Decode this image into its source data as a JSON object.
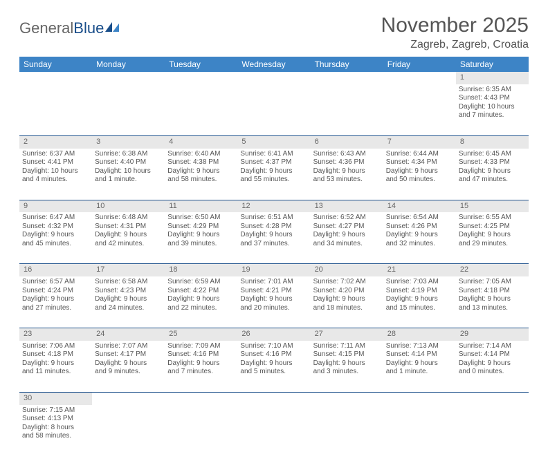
{
  "logo": {
    "part1": "General",
    "part2": "Blue"
  },
  "title": "November 2025",
  "location": "Zagreb, Zagreb, Croatia",
  "colors": {
    "header_bg": "#3d84c6",
    "header_text": "#ffffff",
    "daynum_bg": "#e8e8e8",
    "cell_border": "#1a4e8a",
    "text": "#555555"
  },
  "weekdays": [
    "Sunday",
    "Monday",
    "Tuesday",
    "Wednesday",
    "Thursday",
    "Friday",
    "Saturday"
  ],
  "weeks": [
    [
      null,
      null,
      null,
      null,
      null,
      null,
      {
        "n": "1",
        "sr": "Sunrise: 6:35 AM",
        "ss": "Sunset: 4:43 PM",
        "d1": "Daylight: 10 hours",
        "d2": "and 7 minutes."
      }
    ],
    [
      {
        "n": "2",
        "sr": "Sunrise: 6:37 AM",
        "ss": "Sunset: 4:41 PM",
        "d1": "Daylight: 10 hours",
        "d2": "and 4 minutes."
      },
      {
        "n": "3",
        "sr": "Sunrise: 6:38 AM",
        "ss": "Sunset: 4:40 PM",
        "d1": "Daylight: 10 hours",
        "d2": "and 1 minute."
      },
      {
        "n": "4",
        "sr": "Sunrise: 6:40 AM",
        "ss": "Sunset: 4:38 PM",
        "d1": "Daylight: 9 hours",
        "d2": "and 58 minutes."
      },
      {
        "n": "5",
        "sr": "Sunrise: 6:41 AM",
        "ss": "Sunset: 4:37 PM",
        "d1": "Daylight: 9 hours",
        "d2": "and 55 minutes."
      },
      {
        "n": "6",
        "sr": "Sunrise: 6:43 AM",
        "ss": "Sunset: 4:36 PM",
        "d1": "Daylight: 9 hours",
        "d2": "and 53 minutes."
      },
      {
        "n": "7",
        "sr": "Sunrise: 6:44 AM",
        "ss": "Sunset: 4:34 PM",
        "d1": "Daylight: 9 hours",
        "d2": "and 50 minutes."
      },
      {
        "n": "8",
        "sr": "Sunrise: 6:45 AM",
        "ss": "Sunset: 4:33 PM",
        "d1": "Daylight: 9 hours",
        "d2": "and 47 minutes."
      }
    ],
    [
      {
        "n": "9",
        "sr": "Sunrise: 6:47 AM",
        "ss": "Sunset: 4:32 PM",
        "d1": "Daylight: 9 hours",
        "d2": "and 45 minutes."
      },
      {
        "n": "10",
        "sr": "Sunrise: 6:48 AM",
        "ss": "Sunset: 4:31 PM",
        "d1": "Daylight: 9 hours",
        "d2": "and 42 minutes."
      },
      {
        "n": "11",
        "sr": "Sunrise: 6:50 AM",
        "ss": "Sunset: 4:29 PM",
        "d1": "Daylight: 9 hours",
        "d2": "and 39 minutes."
      },
      {
        "n": "12",
        "sr": "Sunrise: 6:51 AM",
        "ss": "Sunset: 4:28 PM",
        "d1": "Daylight: 9 hours",
        "d2": "and 37 minutes."
      },
      {
        "n": "13",
        "sr": "Sunrise: 6:52 AM",
        "ss": "Sunset: 4:27 PM",
        "d1": "Daylight: 9 hours",
        "d2": "and 34 minutes."
      },
      {
        "n": "14",
        "sr": "Sunrise: 6:54 AM",
        "ss": "Sunset: 4:26 PM",
        "d1": "Daylight: 9 hours",
        "d2": "and 32 minutes."
      },
      {
        "n": "15",
        "sr": "Sunrise: 6:55 AM",
        "ss": "Sunset: 4:25 PM",
        "d1": "Daylight: 9 hours",
        "d2": "and 29 minutes."
      }
    ],
    [
      {
        "n": "16",
        "sr": "Sunrise: 6:57 AM",
        "ss": "Sunset: 4:24 PM",
        "d1": "Daylight: 9 hours",
        "d2": "and 27 minutes."
      },
      {
        "n": "17",
        "sr": "Sunrise: 6:58 AM",
        "ss": "Sunset: 4:23 PM",
        "d1": "Daylight: 9 hours",
        "d2": "and 24 minutes."
      },
      {
        "n": "18",
        "sr": "Sunrise: 6:59 AM",
        "ss": "Sunset: 4:22 PM",
        "d1": "Daylight: 9 hours",
        "d2": "and 22 minutes."
      },
      {
        "n": "19",
        "sr": "Sunrise: 7:01 AM",
        "ss": "Sunset: 4:21 PM",
        "d1": "Daylight: 9 hours",
        "d2": "and 20 minutes."
      },
      {
        "n": "20",
        "sr": "Sunrise: 7:02 AM",
        "ss": "Sunset: 4:20 PM",
        "d1": "Daylight: 9 hours",
        "d2": "and 18 minutes."
      },
      {
        "n": "21",
        "sr": "Sunrise: 7:03 AM",
        "ss": "Sunset: 4:19 PM",
        "d1": "Daylight: 9 hours",
        "d2": "and 15 minutes."
      },
      {
        "n": "22",
        "sr": "Sunrise: 7:05 AM",
        "ss": "Sunset: 4:18 PM",
        "d1": "Daylight: 9 hours",
        "d2": "and 13 minutes."
      }
    ],
    [
      {
        "n": "23",
        "sr": "Sunrise: 7:06 AM",
        "ss": "Sunset: 4:18 PM",
        "d1": "Daylight: 9 hours",
        "d2": "and 11 minutes."
      },
      {
        "n": "24",
        "sr": "Sunrise: 7:07 AM",
        "ss": "Sunset: 4:17 PM",
        "d1": "Daylight: 9 hours",
        "d2": "and 9 minutes."
      },
      {
        "n": "25",
        "sr": "Sunrise: 7:09 AM",
        "ss": "Sunset: 4:16 PM",
        "d1": "Daylight: 9 hours",
        "d2": "and 7 minutes."
      },
      {
        "n": "26",
        "sr": "Sunrise: 7:10 AM",
        "ss": "Sunset: 4:16 PM",
        "d1": "Daylight: 9 hours",
        "d2": "and 5 minutes."
      },
      {
        "n": "27",
        "sr": "Sunrise: 7:11 AM",
        "ss": "Sunset: 4:15 PM",
        "d1": "Daylight: 9 hours",
        "d2": "and 3 minutes."
      },
      {
        "n": "28",
        "sr": "Sunrise: 7:13 AM",
        "ss": "Sunset: 4:14 PM",
        "d1": "Daylight: 9 hours",
        "d2": "and 1 minute."
      },
      {
        "n": "29",
        "sr": "Sunrise: 7:14 AM",
        "ss": "Sunset: 4:14 PM",
        "d1": "Daylight: 9 hours",
        "d2": "and 0 minutes."
      }
    ],
    [
      {
        "n": "30",
        "sr": "Sunrise: 7:15 AM",
        "ss": "Sunset: 4:13 PM",
        "d1": "Daylight: 8 hours",
        "d2": "and 58 minutes."
      },
      null,
      null,
      null,
      null,
      null,
      null
    ]
  ]
}
